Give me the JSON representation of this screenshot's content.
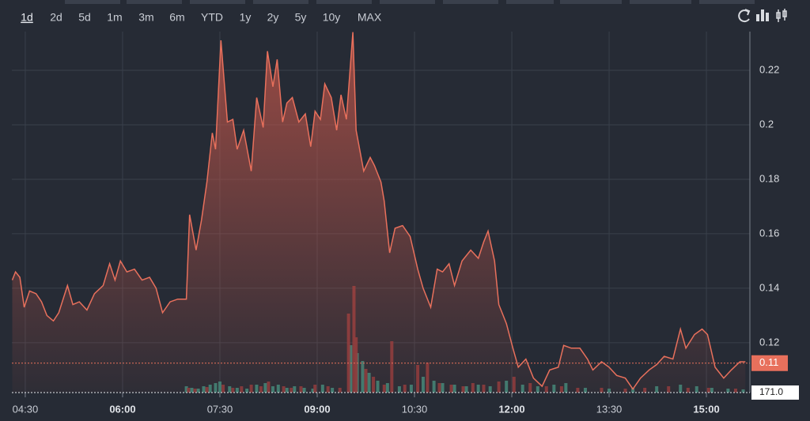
{
  "toolbar": {
    "ranges": [
      "1d",
      "2d",
      "5d",
      "1m",
      "3m",
      "6m",
      "YTD",
      "1y",
      "2y",
      "5y",
      "10y",
      "MAX"
    ],
    "active": 0
  },
  "chart_data": {
    "type": "line",
    "x": [
      258,
      261,
      265,
      269,
      274,
      280,
      285,
      290,
      296,
      301,
      309,
      314,
      320,
      327,
      334,
      342,
      348,
      353,
      358,
      364,
      371,
      378,
      385,
      391,
      397,
      404,
      411,
      419,
      422,
      428,
      433,
      438,
      443,
      446,
      451,
      457,
      462,
      466,
      472,
      479,
      484,
      490,
      494,
      499,
      503,
      508,
      512,
      517,
      523,
      529,
      534,
      538,
      543,
      547,
      553,
      558,
      562,
      567,
      573,
      576,
      583,
      589,
      593,
      599,
      602,
      607,
      612,
      619,
      626,
      633,
      638,
      645,
      651,
      656,
      662,
      667,
      674,
      682,
      689,
      694,
      698,
      704,
      708,
      715,
      721,
      726,
      733,
      740,
      748,
      755,
      763,
      768,
      775,
      783,
      790,
      795,
      803,
      810,
      817,
      825,
      832,
      839,
      847,
      854,
      861,
      869,
      876,
      881,
      889,
      896,
      901,
      908,
      916,
      923,
      931,
      936
    ],
    "series": [
      {
        "color": "#e8705c",
        "values": [
          0.143,
          0.146,
          0.144,
          0.133,
          0.139,
          0.138,
          0.135,
          0.13,
          0.128,
          0.131,
          0.141,
          0.134,
          0.135,
          0.132,
          0.138,
          0.141,
          0.149,
          0.143,
          0.15,
          0.146,
          0.147,
          0.143,
          0.144,
          0.14,
          0.131,
          0.135,
          0.136,
          0.136,
          0.167,
          0.154,
          0.165,
          0.179,
          0.197,
          0.191,
          0.231,
          0.201,
          0.202,
          0.191,
          0.198,
          0.183,
          0.21,
          0.199,
          0.227,
          0.214,
          0.224,
          0.201,
          0.208,
          0.21,
          0.201,
          0.204,
          0.192,
          0.205,
          0.202,
          0.215,
          0.21,
          0.198,
          0.211,
          0.202,
          0.234,
          0.198,
          0.183,
          0.188,
          0.185,
          0.179,
          0.172,
          0.153,
          0.162,
          0.163,
          0.159,
          0.147,
          0.14,
          0.133,
          0.147,
          0.146,
          0.149,
          0.141,
          0.15,
          0.154,
          0.151,
          0.157,
          0.161,
          0.15,
          0.134,
          0.127,
          0.118,
          0.111,
          0.114,
          0.107,
          0.104,
          0.11,
          0.111,
          0.119,
          0.118,
          0.118,
          0.114,
          0.11,
          0.113,
          0.111,
          0.108,
          0.107,
          0.103,
          0.107,
          0.11,
          0.112,
          0.115,
          0.114,
          0.125,
          0.118,
          0.123,
          0.125,
          0.123,
          0.111,
          0.107,
          0.11,
          0.113,
          0.113
        ]
      }
    ],
    "last_price": {
      "value": 0.1125,
      "label": "0.11"
    },
    "xlim": [
      257.6,
      940.2
    ],
    "xticks": [
      {
        "value": 270,
        "label": "04:30"
      },
      {
        "value": 360,
        "label": "06:00"
      },
      {
        "value": 450,
        "label": "07:30"
      },
      {
        "value": 540,
        "label": "09:00"
      },
      {
        "value": 630,
        "label": "10:30"
      },
      {
        "value": 720,
        "label": "12:00"
      },
      {
        "value": 810,
        "label": "13:30"
      },
      {
        "value": 900,
        "label": "15:00"
      }
    ],
    "ylim": [
      0.1017,
      0.2342
    ],
    "yticks": [
      0.12,
      0.14,
      0.16,
      0.18,
      0.2,
      0.22
    ],
    "grid": true,
    "volume_label": "171.0",
    "y2lim": [
      0,
      457
    ],
    "volume_up": {
      "color": "#3d8578",
      "x": [
        419,
        424,
        430,
        435,
        441,
        446,
        450,
        459,
        466,
        475,
        484,
        492,
        499,
        504,
        512,
        519,
        528,
        536,
        545,
        554,
        571,
        577,
        582,
        588,
        596,
        605,
        616,
        627,
        638,
        648,
        656,
        667,
        678,
        689,
        700,
        715,
        730,
        744,
        759,
        770,
        788,
        810,
        832,
        854,
        876,
        891,
        905,
        920,
        934
      ],
      "values": [
        8,
        6,
        5,
        8,
        10,
        12,
        14,
        8,
        6,
        5,
        10,
        12,
        8,
        10,
        6,
        8,
        6,
        5,
        10,
        6,
        60,
        50,
        40,
        25,
        15,
        12,
        8,
        10,
        20,
        15,
        12,
        10,
        8,
        10,
        8,
        15,
        10,
        8,
        10,
        12,
        6,
        5,
        6,
        8,
        10,
        8,
        6,
        5,
        4
      ]
    },
    "volume_down": {
      "color": "#8a3a3c",
      "x": [
        421,
        427,
        438,
        453,
        462,
        470,
        479,
        488,
        495,
        509,
        516,
        525,
        538,
        550,
        561,
        569,
        574,
        576,
        585,
        592,
        602,
        609,
        621,
        633,
        642,
        653,
        664,
        675,
        684,
        694,
        708,
        722,
        737,
        752,
        766,
        781,
        803,
        825,
        843,
        865,
        883,
        902,
        927
      ],
      "values": [
        6,
        5,
        7,
        10,
        6,
        8,
        10,
        8,
        14,
        8,
        6,
        8,
        10,
        8,
        6,
        100,
        135,
        70,
        30,
        20,
        10,
        65,
        10,
        35,
        38,
        12,
        10,
        8,
        12,
        10,
        14,
        20,
        12,
        8,
        8,
        6,
        6,
        5,
        6,
        8,
        6,
        6,
        5
      ]
    }
  }
}
